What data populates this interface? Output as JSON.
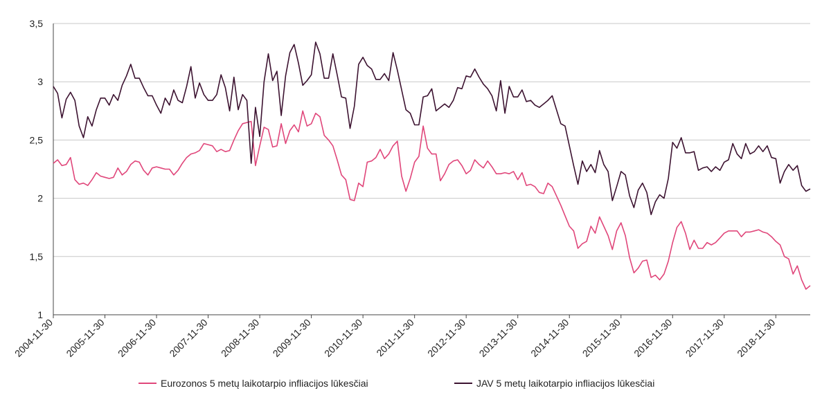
{
  "chart_data": {
    "type": "line",
    "title": "",
    "xlabel": "",
    "ylabel": "",
    "ylim": [
      1,
      3.5
    ],
    "y_ticks": [
      "1",
      "1,5",
      "2",
      "2,5",
      "3",
      "3,5"
    ],
    "y_tick_values": [
      1,
      1.5,
      2,
      2.5,
      3,
      3.5
    ],
    "x_ticks": [
      "2004-11-30",
      "2005-11-30",
      "2006-11-30",
      "2007-11-30",
      "2008-11-30",
      "2009-11-30",
      "2010-11-30",
      "2011-11-30",
      "2012-11-30",
      "2013-11-30",
      "2014-11-30",
      "2015-11-30",
      "2016-11-30",
      "2017-11-30",
      "2018-11-30"
    ],
    "x_start": "2004-11-30",
    "x_end": "2019-08-31",
    "x_step_months": 1,
    "grid": "horizontal",
    "legend_position": "bottom",
    "series": [
      {
        "name": "Eurozonos 5 metų laikotarpio infliacijos lūkesčiai",
        "color": "#e0467a",
        "values": [
          2.3,
          2.33,
          2.28,
          2.29,
          2.35,
          2.16,
          2.12,
          2.13,
          2.11,
          2.16,
          2.22,
          2.19,
          2.18,
          2.17,
          2.18,
          2.26,
          2.2,
          2.23,
          2.29,
          2.32,
          2.31,
          2.24,
          2.2,
          2.26,
          2.27,
          2.26,
          2.25,
          2.25,
          2.2,
          2.24,
          2.3,
          2.35,
          2.38,
          2.39,
          2.41,
          2.47,
          2.46,
          2.45,
          2.4,
          2.42,
          2.4,
          2.41,
          2.5,
          2.58,
          2.64,
          2.65,
          2.66,
          2.28,
          2.45,
          2.61,
          2.59,
          2.44,
          2.45,
          2.64,
          2.47,
          2.58,
          2.63,
          2.57,
          2.75,
          2.62,
          2.64,
          2.73,
          2.7,
          2.54,
          2.5,
          2.45,
          2.33,
          2.2,
          2.16,
          1.99,
          1.98,
          2.13,
          2.1,
          2.31,
          2.32,
          2.35,
          2.42,
          2.34,
          2.38,
          2.45,
          2.49,
          2.19,
          2.06,
          2.17,
          2.31,
          2.36,
          2.62,
          2.43,
          2.38,
          2.38,
          2.15,
          2.21,
          2.29,
          2.32,
          2.33,
          2.28,
          2.21,
          2.24,
          2.33,
          2.29,
          2.26,
          2.32,
          2.27,
          2.21,
          2.21,
          2.22,
          2.21,
          2.23,
          2.16,
          2.22,
          2.11,
          2.12,
          2.1,
          2.05,
          2.04,
          2.13,
          2.1,
          2.02,
          1.94,
          1.85,
          1.76,
          1.72,
          1.57,
          1.61,
          1.63,
          1.76,
          1.7,
          1.84,
          1.76,
          1.68,
          1.56,
          1.72,
          1.79,
          1.68,
          1.49,
          1.36,
          1.4,
          1.46,
          1.47,
          1.32,
          1.34,
          1.3,
          1.35,
          1.46,
          1.62,
          1.75,
          1.8,
          1.7,
          1.56,
          1.64,
          1.57,
          1.57,
          1.62,
          1.6,
          1.62,
          1.66,
          1.7,
          1.72,
          1.72,
          1.72,
          1.67,
          1.71,
          1.71,
          1.72,
          1.73,
          1.71,
          1.7,
          1.67,
          1.63,
          1.6,
          1.5,
          1.48,
          1.35,
          1.42,
          1.3,
          1.22,
          1.25
        ]
      },
      {
        "name": "JAV 5 metų laikotarpio infliacijos lūkesčiai",
        "color": "#3c1230",
        "values": [
          2.96,
          2.9,
          2.69,
          2.85,
          2.91,
          2.84,
          2.62,
          2.52,
          2.7,
          2.62,
          2.76,
          2.86,
          2.86,
          2.8,
          2.89,
          2.84,
          2.97,
          3.05,
          3.15,
          3.03,
          3.03,
          2.95,
          2.88,
          2.88,
          2.8,
          2.73,
          2.86,
          2.8,
          2.93,
          2.84,
          2.82,
          2.96,
          3.13,
          2.86,
          2.99,
          2.89,
          2.84,
          2.84,
          2.89,
          3.06,
          2.95,
          2.75,
          3.04,
          2.76,
          2.89,
          2.84,
          2.3,
          2.78,
          2.53,
          3.0,
          3.24,
          3.01,
          3.09,
          2.71,
          3.05,
          3.25,
          3.32,
          3.16,
          2.97,
          3.01,
          3.06,
          3.34,
          3.24,
          3.03,
          3.03,
          3.24,
          3.06,
          2.87,
          2.86,
          2.6,
          2.79,
          3.15,
          3.21,
          3.14,
          3.11,
          3.02,
          3.02,
          3.07,
          3.01,
          3.25,
          3.1,
          2.93,
          2.76,
          2.73,
          2.63,
          2.63,
          2.87,
          2.88,
          2.94,
          2.75,
          2.78,
          2.81,
          2.78,
          2.84,
          2.95,
          2.94,
          3.05,
          3.04,
          3.11,
          3.04,
          2.98,
          2.94,
          2.88,
          2.75,
          3.01,
          2.73,
          2.96,
          2.87,
          2.87,
          2.93,
          2.83,
          2.84,
          2.8,
          2.78,
          2.81,
          2.84,
          2.88,
          2.76,
          2.64,
          2.62,
          2.45,
          2.28,
          2.12,
          2.32,
          2.23,
          2.29,
          2.22,
          2.41,
          2.29,
          2.23,
          1.98,
          2.1,
          2.23,
          2.2,
          2.02,
          1.92,
          2.07,
          2.13,
          2.05,
          1.86,
          1.97,
          2.03,
          2.0,
          2.17,
          2.48,
          2.43,
          2.52,
          2.39,
          2.39,
          2.4,
          2.24,
          2.26,
          2.27,
          2.23,
          2.27,
          2.24,
          2.31,
          2.33,
          2.47,
          2.38,
          2.34,
          2.47,
          2.38,
          2.4,
          2.45,
          2.4,
          2.45,
          2.35,
          2.34,
          2.13,
          2.23,
          2.29,
          2.24,
          2.28,
          2.11,
          2.06,
          2.08
        ]
      }
    ]
  }
}
